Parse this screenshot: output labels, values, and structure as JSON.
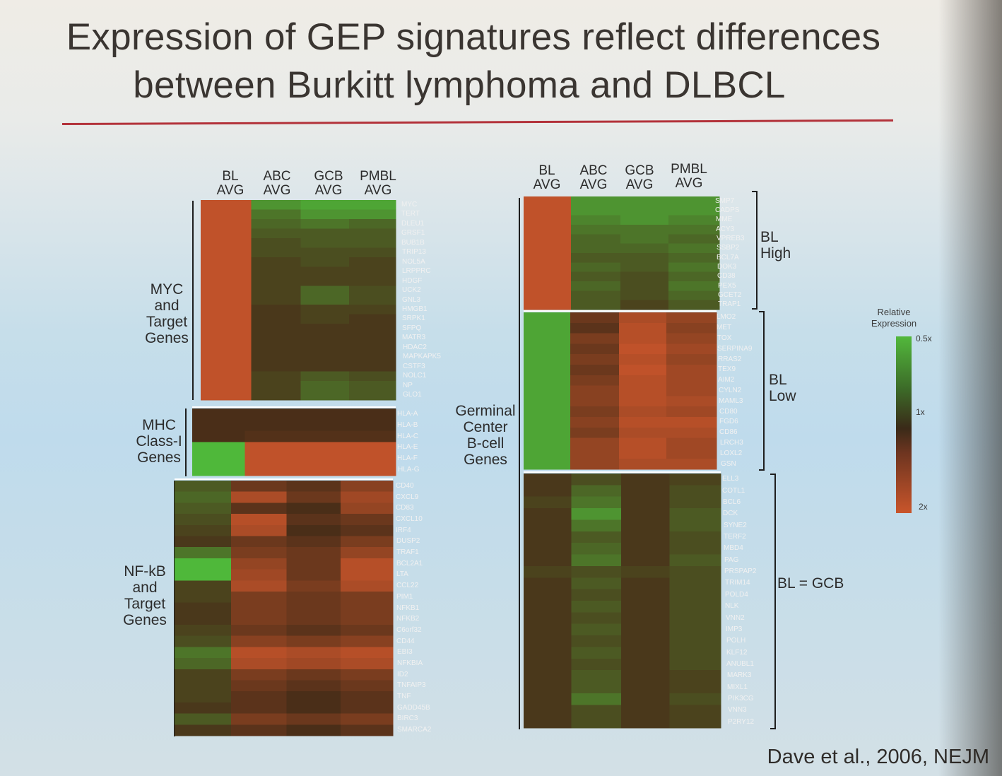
{
  "title": {
    "line1": "Expression of GEP signatures reflect differences",
    "line2": "between Burkitt lymphoma and DLBCL"
  },
  "citation": "Dave et al., 2006, NEJM",
  "colors": {
    "high": "#c9552b",
    "mid": "#4a2e18",
    "low": "#4fb83a",
    "rule": "#b3323a"
  },
  "legend": {
    "title": "Relative Expression",
    "top": "0.5x",
    "middle": "1x",
    "bottom": "2x"
  },
  "chart_data": [
    {
      "type": "heatmap",
      "columns": [
        "BL AVG",
        "ABC AVG",
        "GCB AVG",
        "PMBL AVG"
      ],
      "groups": [
        {
          "label": "MYC and Target Genes",
          "genes": [
            "MYC",
            "TERT",
            "DLEU1",
            "GRSF1",
            "BUB1B",
            "TRIP13",
            "NOL5A",
            "LRPPRC",
            "HDGF",
            "UCK2",
            "GNL3",
            "HMGB1",
            "SRPK1",
            "SFPQ",
            "MATR3",
            "HDAC2",
            "MAPKAPK5",
            "CSTF3",
            "NOLC1",
            "NP",
            "GLO1"
          ],
          "values": [
            [
              1.9,
              0.6,
              0.55,
              0.55
            ],
            [
              1.9,
              0.7,
              0.6,
              0.6
            ],
            [
              1.9,
              0.75,
              0.7,
              0.75
            ],
            [
              1.9,
              0.8,
              0.8,
              0.8
            ],
            [
              1.9,
              0.85,
              0.8,
              0.8
            ],
            [
              1.9,
              0.85,
              0.85,
              0.85
            ],
            [
              1.9,
              0.9,
              0.85,
              0.9
            ],
            [
              1.9,
              0.9,
              0.9,
              0.9
            ],
            [
              1.9,
              0.9,
              0.9,
              0.9
            ],
            [
              1.9,
              0.9,
              0.75,
              0.85
            ],
            [
              1.9,
              0.9,
              0.75,
              0.85
            ],
            [
              1.9,
              0.95,
              0.9,
              0.9
            ],
            [
              1.9,
              0.95,
              0.9,
              0.95
            ],
            [
              1.9,
              0.95,
              0.95,
              0.95
            ],
            [
              1.9,
              0.95,
              0.95,
              0.95
            ],
            [
              1.9,
              0.95,
              0.95,
              0.95
            ],
            [
              1.9,
              0.95,
              0.95,
              0.95
            ],
            [
              1.9,
              0.95,
              0.95,
              0.95
            ],
            [
              1.9,
              0.9,
              0.8,
              0.85
            ],
            [
              1.9,
              0.9,
              0.75,
              0.8
            ],
            [
              1.9,
              0.9,
              0.75,
              0.8
            ]
          ]
        },
        {
          "label": "MHC Class-I Genes",
          "genes": [
            "HLA-A",
            "HLA-B",
            "HLA-C",
            "HLA-E",
            "HLA-F",
            "HLA-G"
          ],
          "values": [
            [
              1.0,
              1.0,
              1.0,
              1.0
            ],
            [
              1.0,
              1.0,
              1.0,
              1.0
            ],
            [
              1.0,
              1.05,
              1.05,
              1.05
            ],
            [
              0.5,
              1.9,
              1.9,
              1.9
            ],
            [
              0.5,
              1.9,
              1.9,
              1.9
            ],
            [
              0.5,
              1.9,
              1.9,
              1.9
            ]
          ]
        },
        {
          "label": "NF-kB and Target Genes",
          "genes": [
            "CD40",
            "CXCL9",
            "CD83",
            "CXCL10",
            "IRF4",
            "DUSP2",
            "TRAF1",
            "BCL2A1",
            "LTA",
            "CCL22",
            "PIM1",
            "NFKB1",
            "NFKB2",
            "C6orf32",
            "CD44",
            "EBI3",
            "NFKBIA",
            "ID2",
            "TNFAIP3",
            "TNF",
            "GADD45B",
            "BIRC3",
            "SMARCA2"
          ],
          "values": [
            [
              0.8,
              1.2,
              1.1,
              1.4
            ],
            [
              0.75,
              1.7,
              1.2,
              1.6
            ],
            [
              0.8,
              1.1,
              1.0,
              1.5
            ],
            [
              0.85,
              1.8,
              1.1,
              1.2
            ],
            [
              0.9,
              1.7,
              1.0,
              1.1
            ],
            [
              0.95,
              1.2,
              1.1,
              1.3
            ],
            [
              0.7,
              1.3,
              1.2,
              1.5
            ],
            [
              0.5,
              1.5,
              1.2,
              1.8
            ],
            [
              0.5,
              1.6,
              1.2,
              1.8
            ],
            [
              0.9,
              1.7,
              1.3,
              1.7
            ],
            [
              0.9,
              1.3,
              1.2,
              1.3
            ],
            [
              0.95,
              1.3,
              1.2,
              1.3
            ],
            [
              0.95,
              1.3,
              1.2,
              1.3
            ],
            [
              0.9,
              1.2,
              1.1,
              1.2
            ],
            [
              0.85,
              1.4,
              1.3,
              1.4
            ],
            [
              0.7,
              1.8,
              1.7,
              1.8
            ],
            [
              0.75,
              1.7,
              1.6,
              1.7
            ],
            [
              0.9,
              1.3,
              1.2,
              1.3
            ],
            [
              0.9,
              1.2,
              1.1,
              1.2
            ],
            [
              0.9,
              1.1,
              1.0,
              1.1
            ],
            [
              0.95,
              1.1,
              1.0,
              1.1
            ],
            [
              0.8,
              1.3,
              1.2,
              1.3
            ],
            [
              0.95,
              1.1,
              1.0,
              1.1
            ]
          ]
        }
      ]
    },
    {
      "type": "heatmap",
      "columns": [
        "BL AVG",
        "ABC AVG",
        "GCB AVG",
        "PMBL AVG"
      ],
      "label": "Germinal Center B-cell Genes",
      "groups": [
        {
          "label": "BL High",
          "genes": [
            "SMP7",
            "CADPS",
            "MME",
            "ACY3",
            "VPREB3",
            "SSBP2",
            "BCL7A",
            "DOK3",
            "CD38",
            "PEX5",
            "GCET2",
            "TRAP1"
          ],
          "values": [
            [
              1.9,
              0.6,
              0.6,
              0.6
            ],
            [
              1.9,
              0.6,
              0.6,
              0.6
            ],
            [
              1.9,
              0.65,
              0.6,
              0.65
            ],
            [
              1.9,
              0.7,
              0.7,
              0.7
            ],
            [
              1.9,
              0.75,
              0.7,
              0.75
            ],
            [
              1.9,
              0.75,
              0.75,
              0.7
            ],
            [
              1.9,
              0.8,
              0.8,
              0.75
            ],
            [
              1.9,
              0.75,
              0.8,
              0.7
            ],
            [
              1.9,
              0.8,
              0.85,
              0.75
            ],
            [
              1.9,
              0.75,
              0.85,
              0.7
            ],
            [
              1.9,
              0.8,
              0.85,
              0.75
            ],
            [
              1.9,
              0.8,
              0.9,
              0.8
            ]
          ]
        },
        {
          "label": "BL Low",
          "genes": [
            "LMO2",
            "MET",
            "TOX",
            "SERPINA9",
            "RRAS2",
            "TEX9",
            "AIM2",
            "CYLN2",
            "MAML3",
            "CD80",
            "FGD6",
            "CD86",
            "LRCH3",
            "LOXL2",
            "GSN"
          ],
          "values": [
            [
              0.55,
              1.2,
              1.7,
              1.5
            ],
            [
              0.55,
              1.1,
              1.8,
              1.4
            ],
            [
              0.55,
              1.3,
              1.8,
              1.5
            ],
            [
              0.55,
              1.2,
              1.9,
              1.6
            ],
            [
              0.55,
              1.3,
              1.8,
              1.5
            ],
            [
              0.55,
              1.2,
              1.9,
              1.6
            ],
            [
              0.55,
              1.3,
              1.8,
              1.6
            ],
            [
              0.55,
              1.4,
              1.8,
              1.6
            ],
            [
              0.55,
              1.4,
              1.8,
              1.7
            ],
            [
              0.55,
              1.3,
              1.7,
              1.6
            ],
            [
              0.55,
              1.4,
              1.8,
              1.8
            ],
            [
              0.55,
              1.3,
              1.7,
              1.7
            ],
            [
              0.55,
              1.5,
              1.8,
              1.6
            ],
            [
              0.55,
              1.5,
              1.8,
              1.6
            ],
            [
              0.55,
              1.5,
              1.7,
              1.7
            ]
          ]
        },
        {
          "label": "BL = GCB",
          "genes": [
            "ELL3",
            "COTL1",
            "BCL6",
            "DCK",
            "SYNE2",
            "TERF2",
            "MBD4",
            "PAG",
            "PRSPAP2",
            "TRIM14",
            "POLD4",
            "NLK",
            "VNN2",
            "IMP3",
            "POLH",
            "KLF12",
            "ANUBL1",
            "MARK3",
            "MIXL1",
            "PIK3CG",
            "VNN3",
            "P2RY12"
          ],
          "values": [
            [
              0.95,
              0.85,
              0.95,
              0.9
            ],
            [
              0.95,
              0.75,
              0.95,
              0.85
            ],
            [
              0.9,
              0.7,
              0.95,
              0.85
            ],
            [
              0.95,
              0.6,
              0.95,
              0.8
            ],
            [
              0.95,
              0.7,
              0.95,
              0.8
            ],
            [
              0.95,
              0.8,
              0.95,
              0.85
            ],
            [
              0.95,
              0.75,
              0.95,
              0.85
            ],
            [
              0.95,
              0.7,
              0.95,
              0.8
            ],
            [
              0.9,
              0.85,
              0.9,
              0.85
            ],
            [
              0.95,
              0.8,
              0.95,
              0.85
            ],
            [
              0.95,
              0.85,
              0.95,
              0.85
            ],
            [
              0.95,
              0.8,
              0.95,
              0.85
            ],
            [
              0.95,
              0.85,
              0.95,
              0.85
            ],
            [
              0.95,
              0.8,
              0.95,
              0.85
            ],
            [
              0.95,
              0.85,
              0.95,
              0.85
            ],
            [
              0.95,
              0.8,
              0.95,
              0.85
            ],
            [
              0.95,
              0.85,
              0.95,
              0.85
            ],
            [
              0.95,
              0.8,
              0.95,
              0.9
            ],
            [
              0.95,
              0.8,
              0.95,
              0.9
            ],
            [
              0.95,
              0.7,
              0.95,
              0.85
            ],
            [
              0.95,
              0.85,
              0.95,
              0.9
            ],
            [
              0.95,
              0.85,
              0.95,
              0.9
            ]
          ]
        }
      ]
    }
  ]
}
